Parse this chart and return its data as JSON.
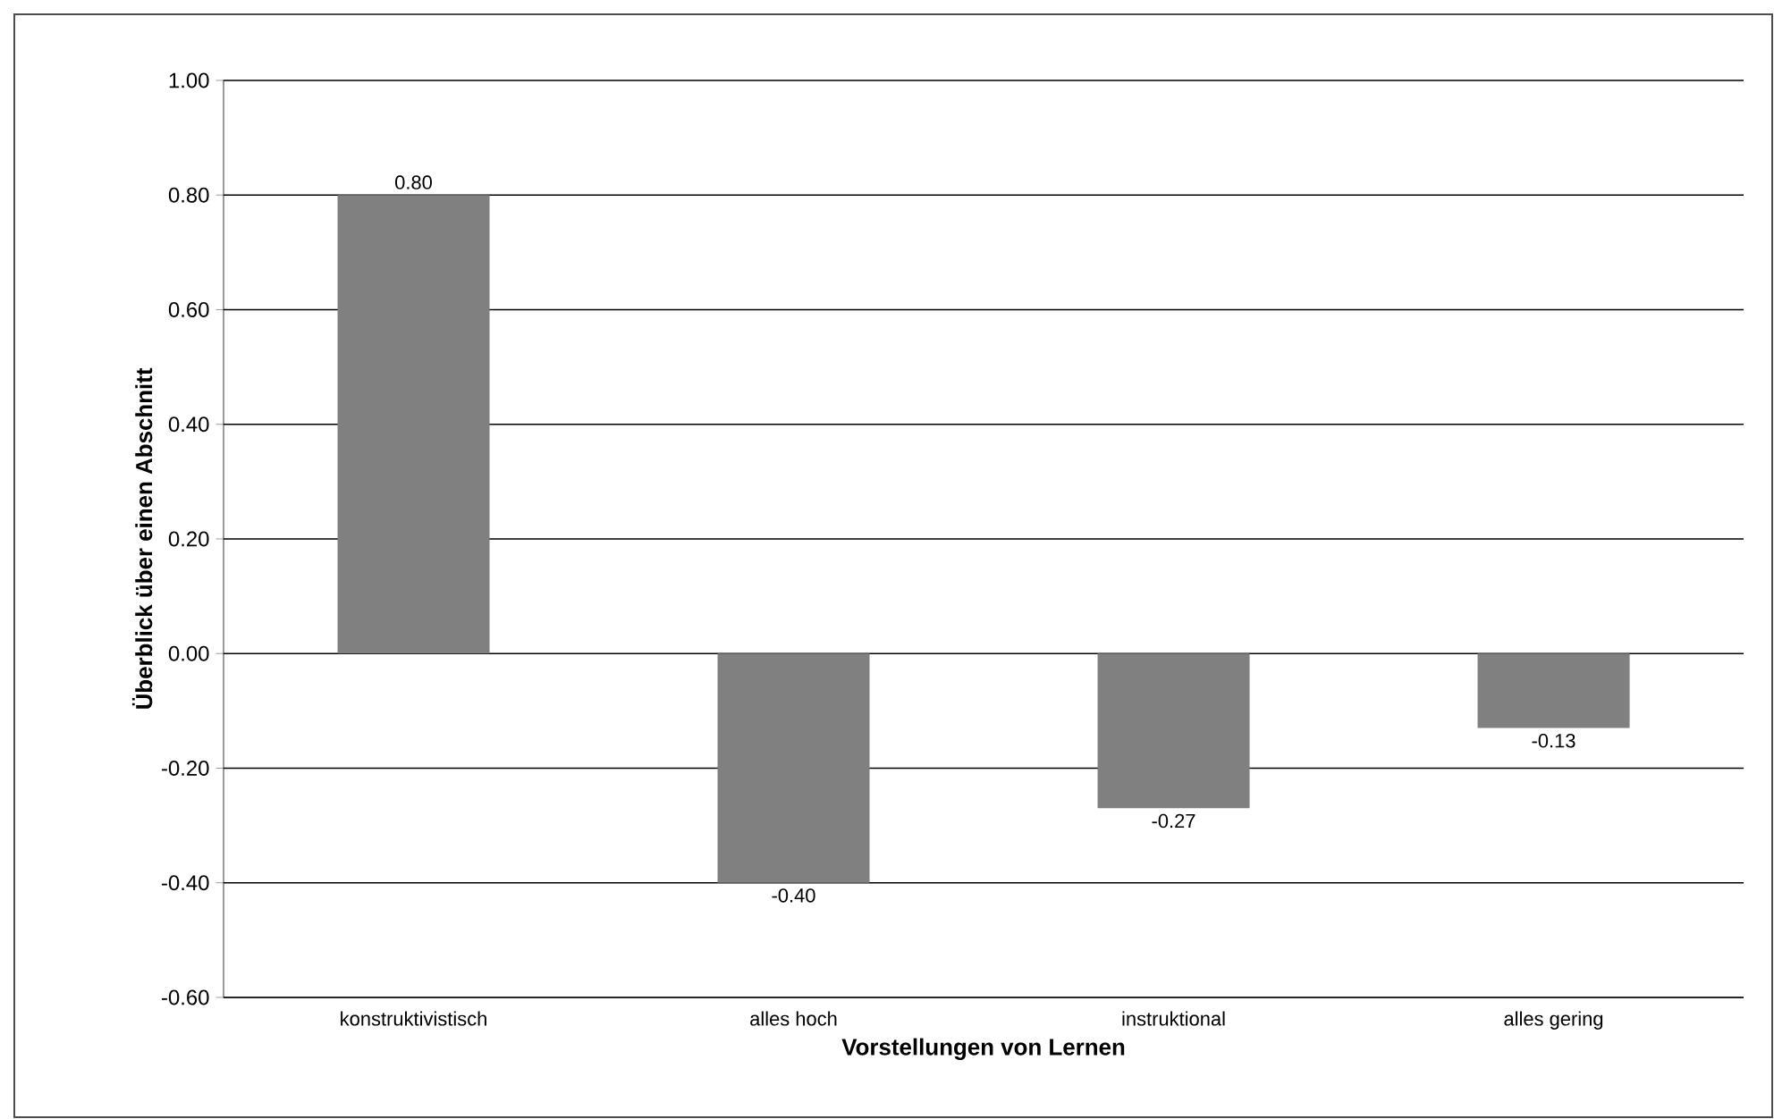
{
  "chart_data": {
    "type": "bar",
    "xlabel": "Vorstellungen von Lernen",
    "ylabel": "Überblick über einen Abschnitt",
    "categories": [
      "konstruktivistisch",
      "alles hoch",
      "instruktional",
      "alles gering"
    ],
    "values": [
      0.8,
      -0.4,
      -0.27,
      -0.13
    ],
    "color": "#808080",
    "ylim": [
      -0.6,
      1.0
    ],
    "yticks": [
      {
        "value": -0.6,
        "label": "-0.60"
      },
      {
        "value": -0.4,
        "label": "-0.40"
      },
      {
        "value": -0.2,
        "label": "-0.20"
      },
      {
        "value": 0,
        "label": "0.00"
      },
      {
        "value": 0.2,
        "label": "0.20"
      },
      {
        "value": 0.4,
        "label": "0.40"
      },
      {
        "value": 0.6,
        "label": "0.60"
      },
      {
        "value": 0.8,
        "label": "0.80"
      },
      {
        "value": 1.0,
        "label": "1.00"
      }
    ],
    "value_labels": [
      "0.80",
      "-0.40",
      "-0.27",
      "-0.13"
    ],
    "grid": "y"
  }
}
